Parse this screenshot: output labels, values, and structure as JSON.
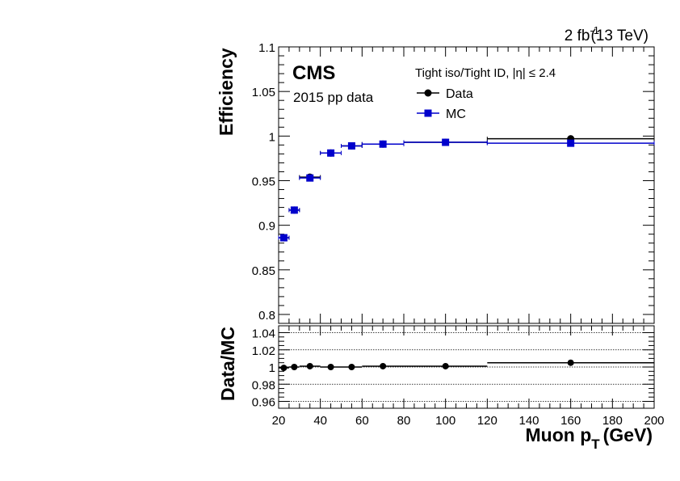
{
  "header": {
    "lumi": "2 fb",
    "lumi_exp": "-1",
    "energy": "(13 TeV)"
  },
  "labels": {
    "experiment": "CMS",
    "dataset": "2015 pp data",
    "selection": "Tight iso/Tight ID, |η| ≤ 2.4"
  },
  "colors": {
    "data": "#000000",
    "mc": "#0000cc"
  },
  "chart_data": [
    {
      "type": "scatter",
      "panel": "top",
      "ylabel": "Efficiency",
      "xlim": [
        20,
        200
      ],
      "ylim": [
        0.79,
        1.1
      ],
      "yticks": [
        {
          "value": 0.8,
          "label": "0.8"
        },
        {
          "value": 0.85,
          "label": "0.85"
        },
        {
          "value": 0.9,
          "label": "0.9"
        },
        {
          "value": 0.95,
          "label": "0.95"
        },
        {
          "value": 1.0,
          "label": "1"
        },
        {
          "value": 1.05,
          "label": "1.05"
        },
        {
          "value": 1.1,
          "label": "1.1"
        }
      ],
      "legend": {
        "placement": "top-center",
        "entries": [
          "Data",
          "MC"
        ]
      },
      "series": [
        {
          "name": "Data",
          "marker": "circle",
          "points": [
            {
              "x": 22.5,
              "xlo": 20,
              "xhi": 25,
              "y": 0.886
            },
            {
              "x": 27.5,
              "xlo": 25,
              "xhi": 30,
              "y": 0.917
            },
            {
              "x": 35,
              "xlo": 30,
              "xhi": 40,
              "y": 0.954
            },
            {
              "x": 45,
              "xlo": 40,
              "xhi": 50,
              "y": 0.981
            },
            {
              "x": 55,
              "xlo": 50,
              "xhi": 60,
              "y": 0.989
            },
            {
              "x": 70,
              "xlo": 60,
              "xhi": 80,
              "y": 0.991
            },
            {
              "x": 100,
              "xlo": 80,
              "xhi": 120,
              "y": 0.993
            },
            {
              "x": 160,
              "xlo": 120,
              "xhi": 200,
              "y": 0.997
            }
          ]
        },
        {
          "name": "MC",
          "marker": "square",
          "points": [
            {
              "x": 22.5,
              "xlo": 20,
              "xhi": 25,
              "y": 0.886
            },
            {
              "x": 27.5,
              "xlo": 25,
              "xhi": 30,
              "y": 0.917
            },
            {
              "x": 35,
              "xlo": 30,
              "xhi": 40,
              "y": 0.953
            },
            {
              "x": 45,
              "xlo": 40,
              "xhi": 50,
              "y": 0.981
            },
            {
              "x": 55,
              "xlo": 50,
              "xhi": 60,
              "y": 0.989
            },
            {
              "x": 70,
              "xlo": 60,
              "xhi": 80,
              "y": 0.991
            },
            {
              "x": 100,
              "xlo": 80,
              "xhi": 120,
              "y": 0.993
            },
            {
              "x": 160,
              "xlo": 120,
              "xhi": 200,
              "y": 0.992
            }
          ]
        }
      ]
    },
    {
      "type": "scatter",
      "panel": "ratio",
      "ylabel": "Data/MC",
      "xlabel": "Muon p",
      "xlabel_sub": "T",
      "xlabel_unit": "(GeV)",
      "xlim": [
        20,
        200
      ],
      "ylim": [
        0.952,
        1.048
      ],
      "grid": true,
      "xticks": [
        {
          "value": 20,
          "label": "20"
        },
        {
          "value": 40,
          "label": "40"
        },
        {
          "value": 60,
          "label": "60"
        },
        {
          "value": 80,
          "label": "80"
        },
        {
          "value": 100,
          "label": "100"
        },
        {
          "value": 120,
          "label": "120"
        },
        {
          "value": 140,
          "label": "140"
        },
        {
          "value": 160,
          "label": "160"
        },
        {
          "value": 180,
          "label": "180"
        },
        {
          "value": 200,
          "label": "200"
        }
      ],
      "yticks": [
        {
          "value": 0.96,
          "label": "0.96"
        },
        {
          "value": 0.98,
          "label": "0.98"
        },
        {
          "value": 1.0,
          "label": "1"
        },
        {
          "value": 1.02,
          "label": "1.02"
        },
        {
          "value": 1.04,
          "label": "1.04"
        }
      ],
      "points": [
        {
          "x": 22.5,
          "xlo": 20,
          "xhi": 25,
          "y": 0.999
        },
        {
          "x": 27.5,
          "xlo": 25,
          "xhi": 30,
          "y": 1.0
        },
        {
          "x": 35,
          "xlo": 30,
          "xhi": 40,
          "y": 1.001
        },
        {
          "x": 45,
          "xlo": 40,
          "xhi": 50,
          "y": 1.0
        },
        {
          "x": 55,
          "xlo": 50,
          "xhi": 60,
          "y": 1.0
        },
        {
          "x": 70,
          "xlo": 60,
          "xhi": 80,
          "y": 1.001
        },
        {
          "x": 100,
          "xlo": 80,
          "xhi": 120,
          "y": 1.001
        },
        {
          "x": 160,
          "xlo": 120,
          "xhi": 200,
          "y": 1.005
        }
      ]
    }
  ]
}
